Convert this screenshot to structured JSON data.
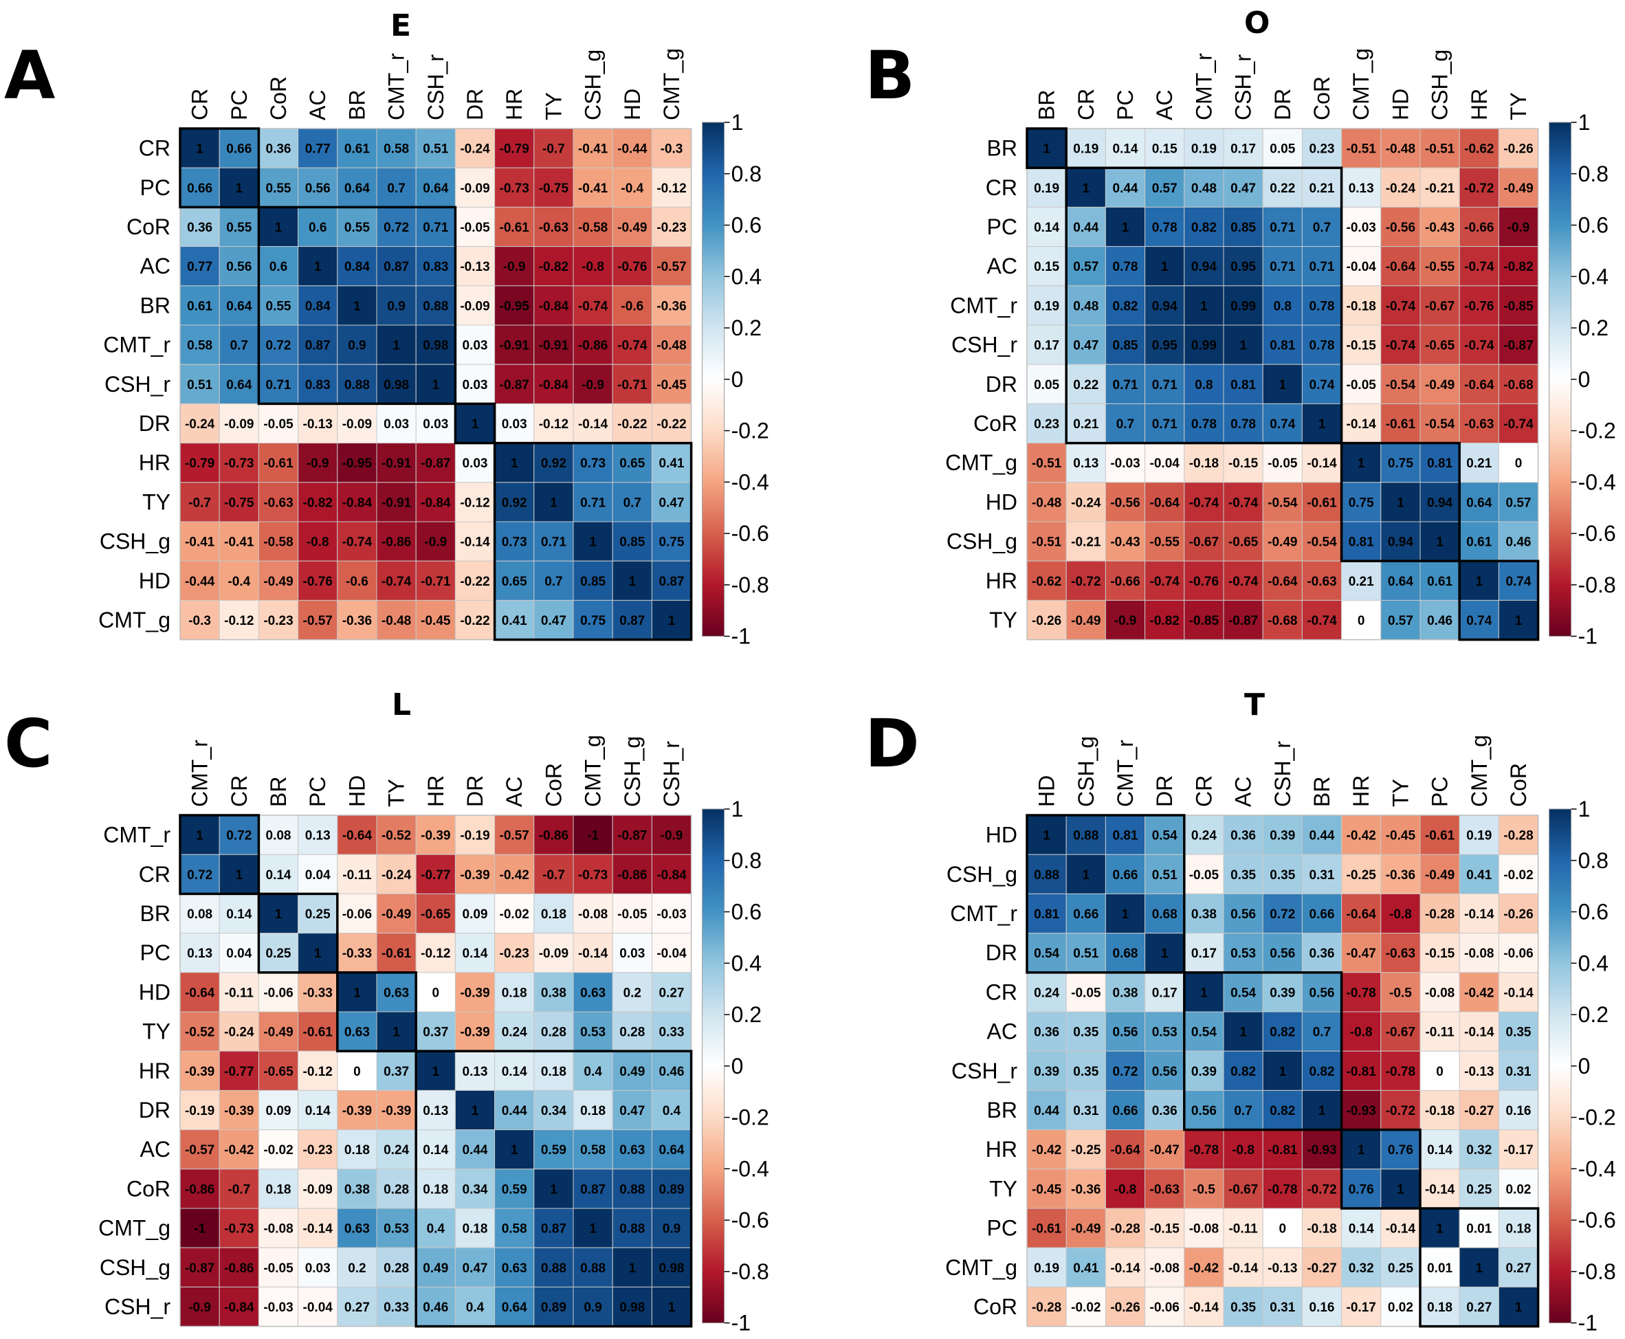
{
  "chart_data": [
    {
      "type": "heatmap",
      "panel": "A",
      "title": "E",
      "vars": [
        "CR",
        "PC",
        "CoR",
        "AC",
        "BR",
        "CMT_r",
        "CSH_r",
        "DR",
        "HR",
        "TY",
        "CSH_g",
        "HD",
        "CMT_g"
      ],
      "values": [
        [
          1,
          0.66,
          0.36,
          0.77,
          0.61,
          0.58,
          0.51,
          -0.24,
          -0.79,
          -0.7,
          -0.41,
          -0.44,
          -0.3
        ],
        [
          0.66,
          1,
          0.55,
          0.56,
          0.64,
          0.7,
          0.64,
          -0.09,
          -0.73,
          -0.75,
          -0.41,
          -0.4,
          -0.12
        ],
        [
          0.36,
          0.55,
          1,
          0.6,
          0.55,
          0.72,
          0.71,
          -0.05,
          -0.61,
          -0.63,
          -0.58,
          -0.49,
          -0.23
        ],
        [
          0.77,
          0.56,
          0.6,
          1,
          0.84,
          0.87,
          0.83,
          -0.13,
          -0.9,
          -0.82,
          -0.8,
          -0.76,
          -0.57
        ],
        [
          0.61,
          0.64,
          0.55,
          0.84,
          1,
          0.9,
          0.88,
          -0.09,
          -0.95,
          -0.84,
          -0.74,
          -0.6,
          -0.36
        ],
        [
          0.58,
          0.7,
          0.72,
          0.87,
          0.9,
          1,
          0.98,
          0.03,
          -0.91,
          -0.91,
          -0.86,
          -0.74,
          -0.48
        ],
        [
          0.51,
          0.64,
          0.71,
          0.83,
          0.88,
          0.98,
          1,
          0.03,
          -0.87,
          -0.84,
          -0.9,
          -0.71,
          -0.45
        ],
        [
          -0.24,
          -0.09,
          -0.05,
          -0.13,
          -0.09,
          0.03,
          0.03,
          1,
          0.03,
          -0.12,
          -0.14,
          -0.22,
          -0.22
        ],
        [
          -0.79,
          -0.73,
          -0.61,
          -0.9,
          -0.95,
          -0.91,
          -0.87,
          0.03,
          1,
          0.92,
          0.73,
          0.65,
          0.41
        ],
        [
          -0.7,
          -0.75,
          -0.63,
          -0.82,
          -0.84,
          -0.91,
          -0.84,
          -0.12,
          0.92,
          1,
          0.71,
          0.7,
          0.47
        ],
        [
          -0.41,
          -0.41,
          -0.58,
          -0.8,
          -0.74,
          -0.86,
          -0.9,
          -0.14,
          0.73,
          0.71,
          1,
          0.85,
          0.75
        ],
        [
          -0.44,
          -0.4,
          -0.49,
          -0.76,
          -0.6,
          -0.74,
          -0.71,
          -0.22,
          0.65,
          0.7,
          0.85,
          1,
          0.87
        ],
        [
          -0.3,
          -0.12,
          -0.23,
          -0.57,
          -0.36,
          -0.48,
          -0.45,
          -0.22,
          0.41,
          0.47,
          0.75,
          0.87,
          1
        ]
      ],
      "clusters": [
        [
          0,
          1
        ],
        [
          2,
          6
        ],
        [
          7,
          7
        ],
        [
          8,
          12
        ]
      ],
      "color_range": [
        -1,
        1
      ],
      "colorbar_ticks": [
        "1",
        "0.8",
        "0.6",
        "0.4",
        "0.2",
        "0",
        "-0.2",
        "-0.4",
        "-0.6",
        "-0.8",
        "-1"
      ]
    },
    {
      "type": "heatmap",
      "panel": "B",
      "title": "O",
      "vars": [
        "BR",
        "CR",
        "PC",
        "AC",
        "CMT_r",
        "CSH_r",
        "DR",
        "CoR",
        "CMT_g",
        "HD",
        "CSH_g",
        "HR",
        "TY"
      ],
      "values": [
        [
          1,
          0.19,
          0.14,
          0.15,
          0.19,
          0.17,
          0.05,
          0.23,
          -0.51,
          -0.48,
          -0.51,
          -0.62,
          -0.26
        ],
        [
          0.19,
          1,
          0.44,
          0.57,
          0.48,
          0.47,
          0.22,
          0.21,
          0.13,
          -0.24,
          -0.21,
          -0.72,
          -0.49
        ],
        [
          0.14,
          0.44,
          1,
          0.78,
          0.82,
          0.85,
          0.71,
          0.7,
          -0.03,
          -0.56,
          -0.43,
          -0.66,
          -0.9
        ],
        [
          0.15,
          0.57,
          0.78,
          1,
          0.94,
          0.95,
          0.71,
          0.71,
          -0.04,
          -0.64,
          -0.55,
          -0.74,
          -0.82
        ],
        [
          0.19,
          0.48,
          0.82,
          0.94,
          1,
          0.99,
          0.8,
          0.78,
          -0.18,
          -0.74,
          -0.67,
          -0.76,
          -0.85
        ],
        [
          0.17,
          0.47,
          0.85,
          0.95,
          0.99,
          1,
          0.81,
          0.78,
          -0.15,
          -0.74,
          -0.65,
          -0.74,
          -0.87
        ],
        [
          0.05,
          0.22,
          0.71,
          0.71,
          0.8,
          0.81,
          1,
          0.74,
          -0.05,
          -0.54,
          -0.49,
          -0.64,
          -0.68
        ],
        [
          0.23,
          0.21,
          0.7,
          0.71,
          0.78,
          0.78,
          0.74,
          1,
          -0.14,
          -0.61,
          -0.54,
          -0.63,
          -0.74
        ],
        [
          -0.51,
          0.13,
          -0.03,
          -0.04,
          -0.18,
          -0.15,
          -0.05,
          -0.14,
          1,
          0.75,
          0.81,
          0.21,
          0
        ],
        [
          -0.48,
          -0.24,
          -0.56,
          -0.64,
          -0.74,
          -0.74,
          -0.54,
          -0.61,
          0.75,
          1,
          0.94,
          0.64,
          0.57
        ],
        [
          -0.51,
          -0.21,
          -0.43,
          -0.55,
          -0.67,
          -0.65,
          -0.49,
          -0.54,
          0.81,
          0.94,
          1,
          0.61,
          0.46
        ],
        [
          -0.62,
          -0.72,
          -0.66,
          -0.74,
          -0.76,
          -0.74,
          -0.64,
          -0.63,
          0.21,
          0.64,
          0.61,
          1,
          0.74
        ],
        [
          -0.26,
          -0.49,
          -0.9,
          -0.82,
          -0.85,
          -0.87,
          -0.68,
          -0.74,
          0,
          0.57,
          0.46,
          0.74,
          1
        ]
      ],
      "clusters": [
        [
          0,
          0
        ],
        [
          1,
          7
        ],
        [
          8,
          10
        ],
        [
          11,
          12
        ]
      ],
      "color_range": [
        -1,
        1
      ],
      "colorbar_ticks": [
        "1",
        "0.8",
        "0.6",
        "0.4",
        "0.2",
        "0",
        "-0.2",
        "-0.4",
        "-0.6",
        "-0.8",
        "-1"
      ]
    },
    {
      "type": "heatmap",
      "panel": "C",
      "title": "L",
      "vars": [
        "CMT_r",
        "CR",
        "BR",
        "PC",
        "HD",
        "TY",
        "HR",
        "DR",
        "AC",
        "CoR",
        "CMT_g",
        "CSH_g",
        "CSH_r"
      ],
      "values": [
        [
          1,
          0.72,
          0.08,
          0.13,
          -0.64,
          -0.52,
          -0.39,
          -0.19,
          -0.57,
          -0.86,
          -1,
          -0.87,
          -0.9
        ],
        [
          0.72,
          1,
          0.14,
          0.04,
          -0.11,
          -0.24,
          -0.77,
          -0.39,
          -0.42,
          -0.7,
          -0.73,
          -0.86,
          -0.84
        ],
        [
          0.08,
          0.14,
          1,
          0.25,
          -0.06,
          -0.49,
          -0.65,
          0.09,
          -0.02,
          0.18,
          -0.08,
          -0.05,
          -0.03
        ],
        [
          0.13,
          0.04,
          0.25,
          1,
          -0.33,
          -0.61,
          -0.12,
          0.14,
          -0.23,
          -0.09,
          -0.14,
          0.03,
          -0.04
        ],
        [
          -0.64,
          -0.11,
          -0.06,
          -0.33,
          1,
          0.63,
          0,
          -0.39,
          0.18,
          0.38,
          0.63,
          0.2,
          0.27
        ],
        [
          -0.52,
          -0.24,
          -0.49,
          -0.61,
          0.63,
          1,
          0.37,
          -0.39,
          0.24,
          0.28,
          0.53,
          0.28,
          0.33
        ],
        [
          -0.39,
          -0.77,
          -0.65,
          -0.12,
          0,
          0.37,
          1,
          0.13,
          0.14,
          0.18,
          0.4,
          0.49,
          0.46
        ],
        [
          -0.19,
          -0.39,
          0.09,
          0.14,
          -0.39,
          -0.39,
          0.13,
          1,
          0.44,
          0.34,
          0.18,
          0.47,
          0.4
        ],
        [
          -0.57,
          -0.42,
          -0.02,
          -0.23,
          0.18,
          0.24,
          0.14,
          0.44,
          1,
          0.59,
          0.58,
          0.63,
          0.64
        ],
        [
          -0.86,
          -0.7,
          0.18,
          -0.09,
          0.38,
          0.28,
          0.18,
          0.34,
          0.59,
          1,
          0.87,
          0.88,
          0.89
        ],
        [
          -1,
          -0.73,
          -0.08,
          -0.14,
          0.63,
          0.53,
          0.4,
          0.18,
          0.58,
          0.87,
          1,
          0.88,
          0.9
        ],
        [
          -0.87,
          -0.86,
          -0.05,
          0.03,
          0.2,
          0.28,
          0.49,
          0.47,
          0.63,
          0.88,
          0.88,
          1,
          0.98
        ],
        [
          -0.9,
          -0.84,
          -0.03,
          -0.04,
          0.27,
          0.33,
          0.46,
          0.4,
          0.64,
          0.89,
          0.9,
          0.98,
          1
        ]
      ],
      "clusters": [
        [
          0,
          1
        ],
        [
          2,
          3
        ],
        [
          4,
          5
        ],
        [
          6,
          12
        ]
      ],
      "color_range": [
        -1,
        1
      ],
      "colorbar_ticks": [
        "1",
        "0.8",
        "0.6",
        "0.4",
        "0.2",
        "0",
        "-0.2",
        "-0.4",
        "-0.6",
        "-0.8",
        "-1"
      ]
    },
    {
      "type": "heatmap",
      "panel": "D",
      "title": "T",
      "vars": [
        "HD",
        "CSH_g",
        "CMT_r",
        "DR",
        "CR",
        "AC",
        "CSH_r",
        "BR",
        "HR",
        "TY",
        "PC",
        "CMT_g",
        "CoR"
      ],
      "values": [
        [
          1,
          0.88,
          0.81,
          0.54,
          0.24,
          0.36,
          0.39,
          0.44,
          -0.42,
          -0.45,
          -0.61,
          0.19,
          -0.28
        ],
        [
          0.88,
          1,
          0.66,
          0.51,
          -0.05,
          0.35,
          0.35,
          0.31,
          -0.25,
          -0.36,
          -0.49,
          0.41,
          -0.02
        ],
        [
          0.81,
          0.66,
          1,
          0.68,
          0.38,
          0.56,
          0.72,
          0.66,
          -0.64,
          -0.8,
          -0.28,
          -0.14,
          -0.26
        ],
        [
          0.54,
          0.51,
          0.68,
          1,
          0.17,
          0.53,
          0.56,
          0.36,
          -0.47,
          -0.63,
          -0.15,
          -0.08,
          -0.06
        ],
        [
          0.24,
          -0.05,
          0.38,
          0.17,
          1,
          0.54,
          0.39,
          0.56,
          -0.78,
          -0.5,
          -0.08,
          -0.42,
          -0.14
        ],
        [
          0.36,
          0.35,
          0.56,
          0.53,
          0.54,
          1,
          0.82,
          0.7,
          -0.8,
          -0.67,
          -0.11,
          -0.14,
          0.35
        ],
        [
          0.39,
          0.35,
          0.72,
          0.56,
          0.39,
          0.82,
          1,
          0.82,
          -0.81,
          -0.78,
          0,
          -0.13,
          0.31
        ],
        [
          0.44,
          0.31,
          0.66,
          0.36,
          0.56,
          0.7,
          0.82,
          1,
          -0.93,
          -0.72,
          -0.18,
          -0.27,
          0.16
        ],
        [
          -0.42,
          -0.25,
          -0.64,
          -0.47,
          -0.78,
          -0.8,
          -0.81,
          -0.93,
          1,
          0.76,
          0.14,
          0.32,
          -0.17
        ],
        [
          -0.45,
          -0.36,
          -0.8,
          -0.63,
          -0.5,
          -0.67,
          -0.78,
          -0.72,
          0.76,
          1,
          -0.14,
          0.25,
          0.02
        ],
        [
          -0.61,
          -0.49,
          -0.28,
          -0.15,
          -0.08,
          -0.11,
          0,
          -0.18,
          0.14,
          -0.14,
          1,
          0.01,
          0.18
        ],
        [
          0.19,
          0.41,
          -0.14,
          -0.08,
          -0.42,
          -0.14,
          -0.13,
          -0.27,
          0.32,
          0.25,
          0.01,
          1,
          0.27
        ],
        [
          -0.28,
          -0.02,
          -0.26,
          -0.06,
          -0.14,
          0.35,
          0.31,
          0.16,
          -0.17,
          0.02,
          0.18,
          0.27,
          1
        ]
      ],
      "clusters": [
        [
          0,
          3
        ],
        [
          4,
          7
        ],
        [
          8,
          9
        ],
        [
          10,
          12
        ]
      ],
      "color_range": [
        -1,
        1
      ],
      "colorbar_ticks": [
        "1",
        "0.8",
        "0.6",
        "0.4",
        "0.2",
        "0",
        "-0.2",
        "-0.4",
        "-0.6",
        "-0.8",
        "-1"
      ]
    }
  ]
}
